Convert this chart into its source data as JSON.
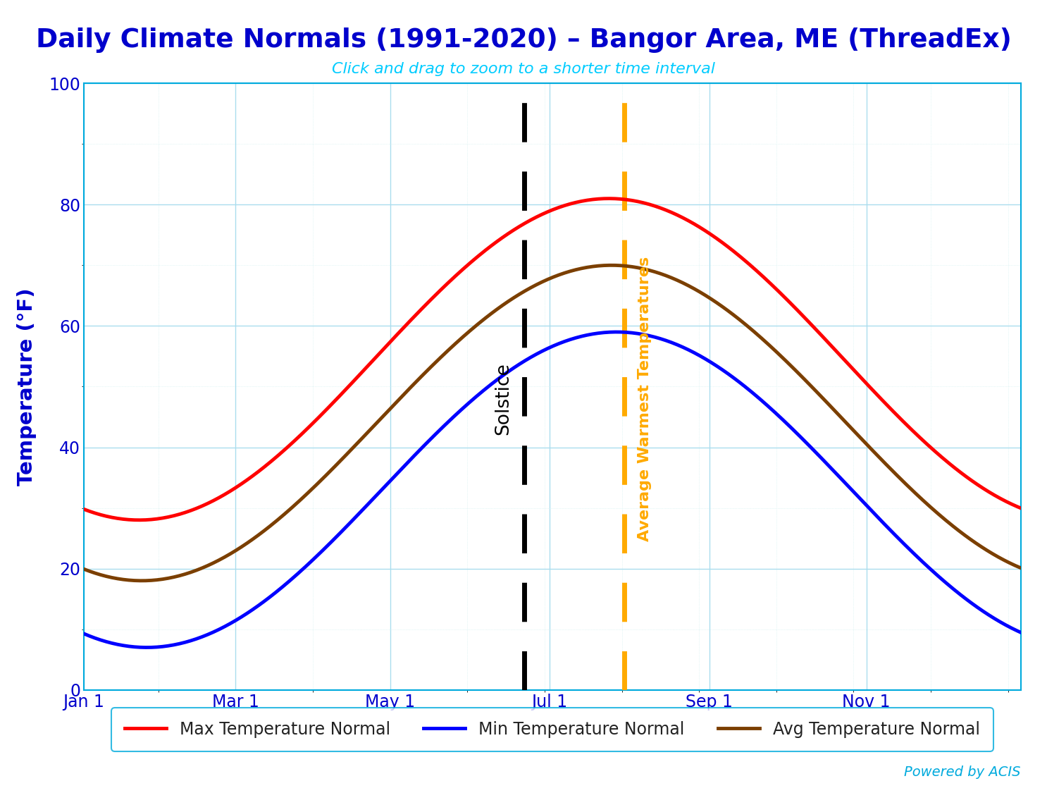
{
  "title": "Daily Climate Normals (1991-2020) – Bangor Area, ME (ThreadEx)",
  "subtitle": "Click and drag to zoom to a shorter time interval",
  "ylabel": "Temperature (°F)",
  "title_color": "#0000cc",
  "subtitle_color": "#00ccff",
  "ylabel_color": "#0000cc",
  "tick_color": "#0000cc",
  "background_color": "#ffffff",
  "grid_color": "#aaddee",
  "grid_minor_color": "#cceeee",
  "axis_line_color": "#00aadd",
  "solstice_day": 172,
  "warmest_day": 211,
  "solstice_label": "Solstice",
  "warmest_label": "Average Warmest Temperatures",
  "solstice_color": "#000000",
  "warmest_color": "#ffaa00",
  "powered_by": "Powered by ACIS",
  "powered_by_color": "#00aadd",
  "legend_entries": [
    "Max Temperature Normal",
    "Min Temperature Normal",
    "Avg Temperature Normal"
  ],
  "legend_colors": [
    "#ff0000",
    "#0000ff",
    "#7b3f00"
  ],
  "max_peak": 81,
  "max_trough": 28,
  "max_peak_day": 205,
  "min_peak": 59,
  "min_trough": 7,
  "min_peak_day": 208,
  "avg_peak": 70,
  "avg_trough": 18,
  "avg_peak_day": 206,
  "xlim_start": 1,
  "xlim_end": 365,
  "ylim": [
    0,
    100
  ],
  "yticks": [
    0,
    20,
    40,
    60,
    80,
    100
  ],
  "xtick_days": [
    1,
    60,
    120,
    182,
    244,
    305
  ],
  "xtick_labels": [
    "Jan 1",
    "Mar 1",
    "May 1",
    "Jul 1",
    "Sep 1",
    "Nov 1"
  ]
}
